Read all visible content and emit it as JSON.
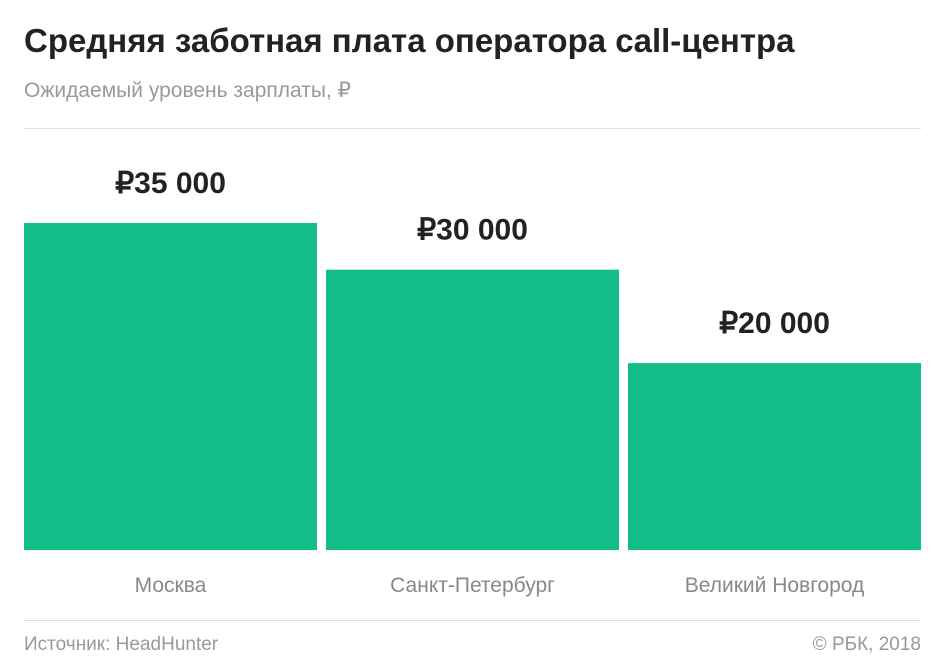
{
  "header": {
    "title": "Средняя заботная плата оператора call-центра",
    "subtitle": "Ожидаемый уровень зарплаты, ₽"
  },
  "footer": {
    "source": "Источник: HeadHunter",
    "copyright": "© РБК, 2018"
  },
  "colors": {
    "bar": "#13bd89",
    "value_label": "#222222",
    "category_label": "#888888"
  },
  "chart_data": {
    "type": "bar",
    "categories": [
      "Москва",
      "Санкт-Петербург",
      "Великий Новгород"
    ],
    "values": [
      35000,
      30000,
      20000
    ],
    "value_labels": [
      "₽35 000",
      "₽30 000",
      "₽20 000"
    ],
    "title": "Средняя заботная плата оператора call-центра",
    "subtitle": "Ожидаемый уровень зарплаты, ₽",
    "xlabel": "",
    "ylabel": "",
    "grid": false,
    "legend": "none"
  }
}
